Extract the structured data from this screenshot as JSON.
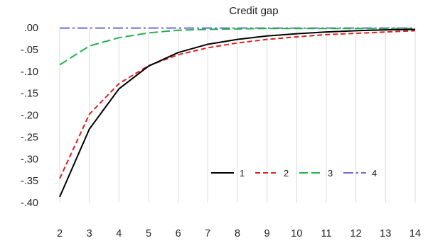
{
  "chart_data": {
    "type": "line",
    "title": "Credit gap",
    "xlabel": "",
    "ylabel": "",
    "x": [
      2,
      3,
      4,
      5,
      6,
      7,
      8,
      9,
      10,
      11,
      12,
      13,
      14
    ],
    "x_tick_labels": [
      "2",
      "3",
      "4",
      "5",
      "6",
      "7",
      "8",
      "9",
      "10",
      "11",
      "12",
      "13",
      "14"
    ],
    "xlim": [
      2,
      14
    ],
    "ylim": [
      -0.4,
      0.0
    ],
    "y_ticks": [
      0.0,
      -0.05,
      -0.1,
      -0.15,
      -0.2,
      -0.25,
      -0.3,
      -0.35,
      -0.4
    ],
    "y_tick_labels": [
      ".00",
      "-.05",
      "-.10",
      "-.15",
      "-.20",
      "-.25",
      "-.30",
      "-.35",
      "-.40"
    ],
    "grid": {
      "vertical": true,
      "horizontal": false
    },
    "legend_position": "bottom-right",
    "series": [
      {
        "name": "1",
        "color": "#000000",
        "dash": "solid",
        "values": [
          -0.387,
          -0.232,
          -0.14,
          -0.088,
          -0.057,
          -0.038,
          -0.027,
          -0.019,
          -0.014,
          -0.01,
          -0.007,
          -0.005,
          -0.004
        ]
      },
      {
        "name": "2",
        "color": "#e0201b",
        "dash": "dashed",
        "values": [
          -0.345,
          -0.198,
          -0.128,
          -0.087,
          -0.062,
          -0.046,
          -0.035,
          -0.027,
          -0.021,
          -0.016,
          -0.013,
          -0.01,
          -0.007
        ]
      },
      {
        "name": "3",
        "color": "#22b24c",
        "dash": "long-dash",
        "values": [
          -0.085,
          -0.042,
          -0.023,
          -0.012,
          -0.006,
          -0.004,
          -0.003,
          -0.002,
          -0.002,
          -0.002,
          -0.002,
          -0.002,
          -0.002
        ]
      },
      {
        "name": "4",
        "color": "#6b6fd6",
        "dash": "dash-dot",
        "values": [
          -0.001,
          -0.001,
          -0.001,
          -0.001,
          -0.001,
          -0.001,
          -0.001,
          -0.001,
          -0.001,
          -0.001,
          -0.001,
          -0.001,
          -0.001
        ]
      }
    ]
  }
}
